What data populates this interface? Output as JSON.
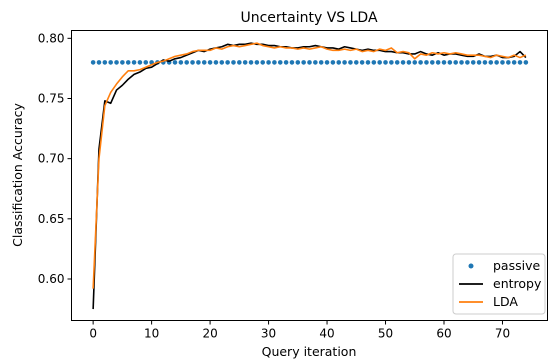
{
  "chart_data": {
    "type": "line",
    "title": "Uncertainty VS LDA",
    "xlabel": "Query iteration",
    "ylabel": "Classification Accuracy",
    "xlim": [
      -3.7,
      77.7
    ],
    "ylim": [
      0.5655,
      0.8065
    ],
    "xticks": [
      0,
      10,
      20,
      30,
      40,
      50,
      60,
      70
    ],
    "xtick_labels": [
      "0",
      "10",
      "20",
      "30",
      "40",
      "50",
      "60",
      "70"
    ],
    "yticks": [
      0.6,
      0.65,
      0.7,
      0.75,
      0.8
    ],
    "ytick_labels": [
      "0.60",
      "0.65",
      "0.70",
      "0.75",
      "0.80"
    ],
    "grid": false,
    "legend_position": "lower-right",
    "colors": {
      "passive": "#1f77b4",
      "entropy": "#000000",
      "LDA": "#ff7f0e"
    },
    "series": [
      {
        "name": "passive",
        "style": "markers",
        "x": [
          0,
          1,
          2,
          3,
          4,
          5,
          6,
          7,
          8,
          9,
          10,
          11,
          12,
          13,
          14,
          15,
          16,
          17,
          18,
          19,
          20,
          21,
          22,
          23,
          24,
          25,
          26,
          27,
          28,
          29,
          30,
          31,
          32,
          33,
          34,
          35,
          36,
          37,
          38,
          39,
          40,
          41,
          42,
          43,
          44,
          45,
          46,
          47,
          48,
          49,
          50,
          51,
          52,
          53,
          54,
          55,
          56,
          57,
          58,
          59,
          60,
          61,
          62,
          63,
          64,
          65,
          66,
          67,
          68,
          69,
          70,
          71,
          72,
          73,
          74
        ],
        "y": [
          0.78,
          0.78,
          0.78,
          0.78,
          0.78,
          0.78,
          0.78,
          0.78,
          0.78,
          0.78,
          0.78,
          0.78,
          0.78,
          0.78,
          0.78,
          0.78,
          0.78,
          0.78,
          0.78,
          0.78,
          0.78,
          0.78,
          0.78,
          0.78,
          0.78,
          0.78,
          0.78,
          0.78,
          0.78,
          0.78,
          0.78,
          0.78,
          0.78,
          0.78,
          0.78,
          0.78,
          0.78,
          0.78,
          0.78,
          0.78,
          0.78,
          0.78,
          0.78,
          0.78,
          0.78,
          0.78,
          0.78,
          0.78,
          0.78,
          0.78,
          0.78,
          0.78,
          0.78,
          0.78,
          0.78,
          0.78,
          0.78,
          0.78,
          0.78,
          0.78,
          0.78,
          0.78,
          0.78,
          0.78,
          0.78,
          0.78,
          0.78,
          0.78,
          0.78,
          0.78,
          0.78,
          0.78,
          0.78,
          0.78,
          0.78
        ]
      },
      {
        "name": "entropy",
        "style": "line",
        "x": [
          0,
          1,
          2,
          3,
          4,
          5,
          6,
          7,
          8,
          9,
          10,
          11,
          12,
          13,
          14,
          15,
          16,
          17,
          18,
          19,
          20,
          21,
          22,
          23,
          24,
          25,
          26,
          27,
          28,
          29,
          30,
          31,
          32,
          33,
          34,
          35,
          36,
          37,
          38,
          39,
          40,
          41,
          42,
          43,
          44,
          45,
          46,
          47,
          48,
          49,
          50,
          51,
          52,
          53,
          54,
          55,
          56,
          57,
          58,
          59,
          60,
          61,
          62,
          63,
          64,
          65,
          66,
          67,
          68,
          69,
          70,
          71,
          72,
          73,
          74
        ],
        "y": [
          0.575,
          0.708,
          0.748,
          0.746,
          0.757,
          0.761,
          0.766,
          0.77,
          0.772,
          0.775,
          0.776,
          0.779,
          0.782,
          0.781,
          0.783,
          0.784,
          0.786,
          0.788,
          0.79,
          0.789,
          0.791,
          0.792,
          0.793,
          0.795,
          0.794,
          0.795,
          0.795,
          0.796,
          0.795,
          0.795,
          0.794,
          0.794,
          0.793,
          0.793,
          0.792,
          0.792,
          0.793,
          0.793,
          0.794,
          0.793,
          0.792,
          0.792,
          0.791,
          0.793,
          0.792,
          0.791,
          0.79,
          0.791,
          0.79,
          0.79,
          0.789,
          0.789,
          0.788,
          0.788,
          0.787,
          0.787,
          0.789,
          0.787,
          0.786,
          0.788,
          0.786,
          0.787,
          0.787,
          0.786,
          0.785,
          0.785,
          0.787,
          0.785,
          0.785,
          0.786,
          0.784,
          0.784,
          0.785,
          0.789,
          0.784
        ]
      },
      {
        "name": "LDA",
        "style": "line",
        "x": [
          0,
          1,
          2,
          3,
          4,
          5,
          6,
          7,
          8,
          9,
          10,
          11,
          12,
          13,
          14,
          15,
          16,
          17,
          18,
          19,
          20,
          21,
          22,
          23,
          24,
          25,
          26,
          27,
          28,
          29,
          30,
          31,
          32,
          33,
          34,
          35,
          36,
          37,
          38,
          39,
          40,
          41,
          42,
          43,
          44,
          45,
          46,
          47,
          48,
          49,
          50,
          51,
          52,
          53,
          54,
          55,
          56,
          57,
          58,
          59,
          60,
          61,
          62,
          63,
          64,
          65,
          66,
          67,
          68,
          69,
          70,
          71,
          72,
          73,
          74
        ],
        "y": [
          0.592,
          0.7,
          0.744,
          0.755,
          0.762,
          0.768,
          0.773,
          0.773,
          0.774,
          0.776,
          0.778,
          0.78,
          0.781,
          0.783,
          0.785,
          0.786,
          0.787,
          0.789,
          0.79,
          0.79,
          0.79,
          0.792,
          0.791,
          0.793,
          0.794,
          0.793,
          0.794,
          0.795,
          0.796,
          0.794,
          0.793,
          0.792,
          0.793,
          0.792,
          0.792,
          0.791,
          0.792,
          0.791,
          0.792,
          0.793,
          0.791,
          0.79,
          0.79,
          0.791,
          0.79,
          0.791,
          0.789,
          0.79,
          0.789,
          0.791,
          0.79,
          0.792,
          0.788,
          0.789,
          0.788,
          0.783,
          0.787,
          0.786,
          0.788,
          0.787,
          0.788,
          0.787,
          0.788,
          0.787,
          0.786,
          0.786,
          0.786,
          0.785,
          0.784,
          0.786,
          0.785,
          0.784,
          0.786,
          0.784,
          0.786
        ]
      }
    ]
  }
}
